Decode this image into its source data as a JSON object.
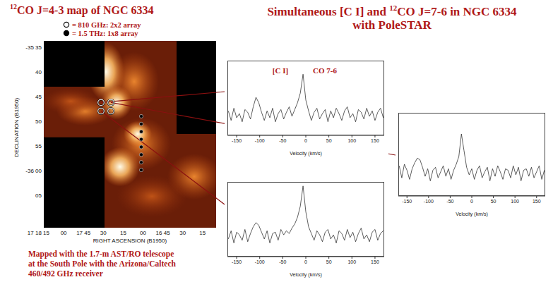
{
  "left_title": {
    "superscript": "12",
    "text": "CO J=4-3 map of NGC 6334"
  },
  "map_legend": [
    {
      "marker": "open",
      "text": "= 810 GHz: 2x2 array"
    },
    {
      "marker": "filled",
      "text": "= 1.5 THz: 1x8 array"
    }
  ],
  "map": {
    "y_label": "DECLINATION (B1950)",
    "y_tick_labels": [
      "-35 35",
      "40",
      "45",
      "50",
      "55",
      "-36 00",
      "05"
    ],
    "x_label": "RIGHT ASCENSION (B1950)",
    "x_tick_labels": [
      "17 18 15",
      "00",
      "17 45",
      "30",
      "15",
      "00",
      "16 45",
      "30",
      "15"
    ]
  },
  "caption": [
    "Mapped with the 1.7-m AST/RO telescope",
    "at the South Pole with the Arizona/Caltech",
    "460/492 GHz receiver"
  ],
  "right_title": {
    "before": "Simultaneous [C I] and ",
    "superscript": "12",
    "after": "CO J=7-6 in NGC 6334",
    "line2": "with PoleSTAR"
  },
  "chart_data": [
    {
      "type": "line",
      "x_label": "Velocity (km/s)",
      "annotations": [
        "[C I]",
        "CO 7-6"
      ],
      "xlim": [
        -170,
        170
      ],
      "xticks": [
        -150,
        -100,
        -50,
        0,
        50,
        100,
        150
      ],
      "ylim": [
        -1.5,
        4
      ],
      "tick_labels": "x",
      "color": "#333333",
      "x": [
        -168,
        -162,
        -156,
        -150,
        -144,
        -138,
        -132,
        -126,
        -120,
        -114,
        -108,
        -102,
        -96,
        -90,
        -84,
        -78,
        -72,
        -66,
        -60,
        -54,
        -48,
        -42,
        -36,
        -30,
        -24,
        -18,
        -12,
        -6,
        0,
        6,
        12,
        18,
        24,
        30,
        36,
        42,
        48,
        54,
        60,
        66,
        72,
        78,
        84,
        90,
        96,
        102,
        108,
        114,
        120,
        126,
        132,
        138,
        144,
        150,
        156,
        162,
        168
      ],
      "values": [
        0.3,
        -0.4,
        0.5,
        -0.2,
        0.1,
        -0.5,
        0.4,
        0.2,
        -0.3,
        0.6,
        1.3,
        0.9,
        0.2,
        -0.4,
        0.3,
        -0.2,
        0.5,
        -0.5,
        0.1,
        0.4,
        -0.3,
        0.2,
        0.6,
        -0.1,
        0.4,
        0.9,
        1.6,
        3.0,
        1.1,
        0.3,
        -0.4,
        0.2,
        0.5,
        -0.3,
        0.1,
        0.4,
        -0.5,
        0.3,
        -0.2,
        0.5,
        0.1,
        -0.4,
        0.3,
        0.6,
        -0.2,
        0.1,
        -0.5,
        0.4,
        0.2,
        -0.3,
        0.5,
        -0.1,
        0.3,
        -0.4,
        0.2,
        0.5,
        -0.2
      ]
    },
    {
      "type": "line",
      "x_label": "Velocity (km/s)",
      "xlim": [
        -170,
        170
      ],
      "xticks": [
        -150,
        -100,
        -50,
        0,
        50,
        100,
        150
      ],
      "ylim": [
        -1.5,
        4
      ],
      "tick_labels": "x",
      "color": "#333333",
      "x": [
        -168,
        -162,
        -156,
        -150,
        -144,
        -138,
        -132,
        -126,
        -120,
        -114,
        -108,
        -102,
        -96,
        -90,
        -84,
        -78,
        -72,
        -66,
        -60,
        -54,
        -48,
        -42,
        -36,
        -30,
        -24,
        -18,
        -12,
        -6,
        0,
        6,
        12,
        18,
        24,
        30,
        36,
        42,
        48,
        54,
        60,
        66,
        72,
        78,
        84,
        90,
        96,
        102,
        108,
        114,
        120,
        126,
        132,
        138,
        144,
        150,
        156,
        162,
        168
      ],
      "values": [
        -0.2,
        0.4,
        -0.5,
        0.3,
        0.1,
        -0.3,
        0.5,
        -0.4,
        0.2,
        0.7,
        1.0,
        0.8,
        0.3,
        -0.2,
        0.4,
        -0.5,
        0.2,
        0.3,
        -0.3,
        0.5,
        0.1,
        0.4,
        0.2,
        0.6,
        0.9,
        1.4,
        2.2,
        3.7,
        1.8,
        0.7,
        0.2,
        -0.3,
        0.4,
        0.1,
        -0.4,
        0.3,
        0.5,
        -0.2,
        0.1,
        -0.5,
        0.4,
        0.2,
        -0.3,
        0.5,
        -0.1,
        0.3,
        -0.4,
        0.2,
        0.6,
        -0.2,
        0.1,
        -0.4,
        0.3,
        0.5,
        -0.3,
        0.2,
        0.4
      ]
    },
    {
      "type": "line",
      "x_label": "Velocity (km/s)",
      "xlim": [
        -170,
        170
      ],
      "xticks": [
        -150,
        -100,
        -50,
        0,
        50,
        100,
        150
      ],
      "ylim": [
        -1.5,
        4
      ],
      "tick_labels": "x",
      "color": "#333333",
      "x": [
        -168,
        -162,
        -156,
        -150,
        -144,
        -138,
        -132,
        -126,
        -120,
        -114,
        -108,
        -102,
        -96,
        -90,
        -84,
        -78,
        -72,
        -66,
        -60,
        -54,
        -48,
        -42,
        -36,
        -30,
        -24,
        -18,
        -12,
        -6,
        0,
        6,
        12,
        18,
        24,
        30,
        36,
        42,
        48,
        54,
        60,
        66,
        72,
        78,
        84,
        90,
        96,
        102,
        108,
        114,
        120,
        126,
        132,
        138,
        144,
        150,
        156,
        162,
        168
      ],
      "values": [
        0.5,
        -0.3,
        0.6,
        0.2,
        -0.4,
        0.3,
        0.7,
        1.0,
        0.9,
        0.4,
        -0.2,
        0.3,
        -0.5,
        0.2,
        0.4,
        -0.3,
        0.1,
        0.5,
        -0.2,
        0.3,
        -0.4,
        0.2,
        0.6,
        1.1,
        2.6,
        1.5,
        0.4,
        -0.1,
        0.3,
        -0.4,
        0.2,
        0.5,
        -0.3,
        0.1,
        0.4,
        -0.5,
        0.3,
        -0.2,
        0.5,
        0.1,
        -0.4,
        0.3,
        0.2,
        -0.3,
        0.5,
        -0.1,
        0.4,
        -0.5,
        0.2,
        0.3,
        -0.2,
        0.4,
        -0.3,
        0.1,
        0.5,
        -0.4,
        0.2
      ]
    }
  ]
}
